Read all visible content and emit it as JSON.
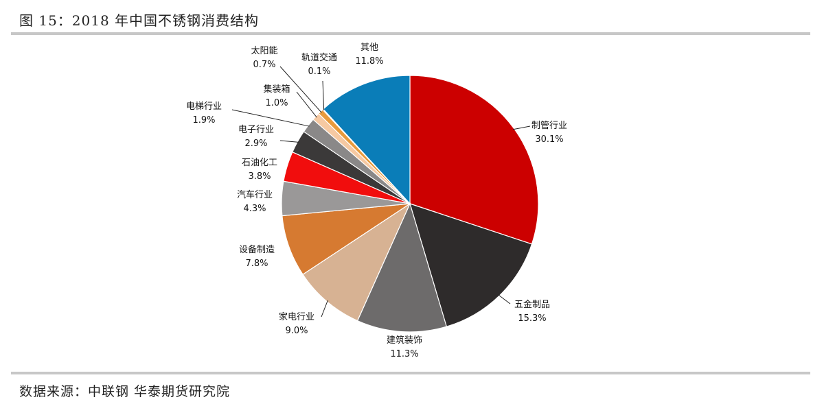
{
  "figure": {
    "title": "图 15：2018 年中国不锈钢消费结构",
    "source": "数据来源：中联钢 华泰期货研究院"
  },
  "chart_data": {
    "type": "pie",
    "title": "",
    "start_angle_deg": 0,
    "direction": "clockwise",
    "slices": [
      {
        "label": "制管行业",
        "value": 30.1,
        "value_label": "30.1%",
        "color": "#cc0000"
      },
      {
        "label": "五金制品",
        "value": 15.3,
        "value_label": "15.3%",
        "color": "#2e2b2b"
      },
      {
        "label": "建筑装饰",
        "value": 11.3,
        "value_label": "11.3%",
        "color": "#6d6b6b"
      },
      {
        "label": "家电行业",
        "value": 9.0,
        "value_label": "9.0%",
        "color": "#d7b293"
      },
      {
        "label": "设备制造",
        "value": 7.8,
        "value_label": "7.8%",
        "color": "#d67a31"
      },
      {
        "label": "汽车行业",
        "value": 4.3,
        "value_label": "4.3%",
        "color": "#9a9898"
      },
      {
        "label": "石油化工",
        "value": 3.8,
        "value_label": "3.8%",
        "color": "#f10d0d"
      },
      {
        "label": "电子行业",
        "value": 2.9,
        "value_label": "2.9%",
        "color": "#3b3939"
      },
      {
        "label": "电梯行业",
        "value": 1.9,
        "value_label": "1.9%",
        "color": "#8a8888"
      },
      {
        "label": "集装箱",
        "value": 1.0,
        "value_label": "1.0%",
        "color": "#f6c9a2"
      },
      {
        "label": "太阳能",
        "value": 0.7,
        "value_label": "0.7%",
        "color": "#e89a3c"
      },
      {
        "label": "轨道交通",
        "value": 0.1,
        "value_label": "0.1%",
        "color": "#b0b0b0"
      },
      {
        "label": "其他",
        "value": 11.8,
        "value_label": "11.8%",
        "color": "#0a7db8"
      }
    ]
  }
}
